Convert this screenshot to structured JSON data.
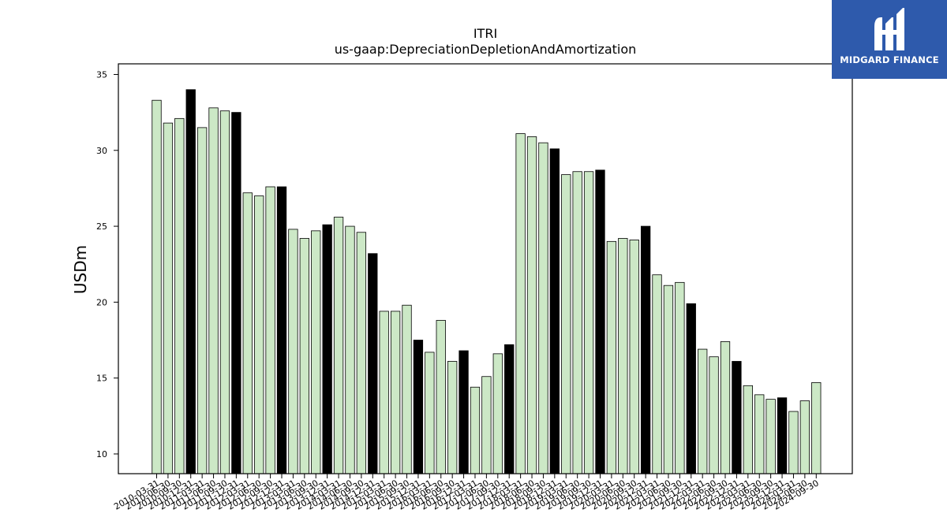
{
  "chart_data": {
    "type": "bar",
    "title": "ITRI",
    "subtitle": "us-gaap:DepreciationDepletionAndAmortization",
    "xlabel": "",
    "ylabel": "USDm",
    "ylim": [
      8.7,
      35.7
    ],
    "yticks": [
      10,
      15,
      20,
      25,
      30,
      35
    ],
    "grid": false,
    "colors": {
      "quarter": "#cce8c6",
      "year_end": "#000000",
      "edge": "#000000"
    },
    "categories": [
      "2010-03-31",
      "2010-06-30",
      "2010-09-30",
      "2010-12-31",
      "2011-03-31",
      "2011-06-30",
      "2011-09-30",
      "2011-12-31",
      "2012-03-31",
      "2012-06-30",
      "2012-09-30",
      "2012-12-31",
      "2013-03-31",
      "2013-06-30",
      "2013-09-30",
      "2013-12-31",
      "2014-03-31",
      "2014-06-30",
      "2014-09-30",
      "2014-12-31",
      "2015-03-31",
      "2015-06-30",
      "2015-09-30",
      "2015-12-31",
      "2016-03-31",
      "2016-06-30",
      "2016-09-30",
      "2016-12-31",
      "2017-03-31",
      "2017-06-30",
      "2017-09-30",
      "2017-12-31",
      "2018-03-31",
      "2018-06-30",
      "2018-09-30",
      "2018-12-31",
      "2019-03-31",
      "2019-06-30",
      "2019-09-30",
      "2019-12-31",
      "2020-03-31",
      "2020-06-30",
      "2020-09-30",
      "2020-12-31",
      "2021-03-31",
      "2021-06-30",
      "2021-09-30",
      "2021-12-31",
      "2022-03-31",
      "2022-06-30",
      "2022-09-30",
      "2022-12-31",
      "2023-03-31",
      "2023-06-30",
      "2023-09-30",
      "2023-12-31",
      "2024-03-31",
      "2024-06-30",
      "2024-09-30"
    ],
    "values": [
      33.3,
      31.8,
      32.1,
      34.0,
      31.5,
      32.8,
      32.6,
      32.5,
      27.2,
      27.0,
      27.6,
      27.6,
      24.8,
      24.2,
      24.7,
      25.1,
      25.6,
      25.0,
      24.6,
      23.2,
      19.4,
      19.4,
      19.8,
      17.5,
      16.7,
      18.8,
      16.1,
      16.8,
      14.4,
      15.1,
      16.6,
      17.2,
      31.1,
      30.9,
      30.5,
      30.1,
      28.4,
      28.6,
      28.6,
      28.7,
      24.0,
      24.2,
      24.1,
      25.0,
      21.8,
      21.1,
      21.3,
      19.9,
      16.9,
      16.4,
      17.4,
      16.1,
      14.5,
      13.9,
      13.6,
      13.7,
      12.8,
      13.5,
      14.7
    ]
  },
  "logo": {
    "name": "MIDGARD FINANCE"
  }
}
